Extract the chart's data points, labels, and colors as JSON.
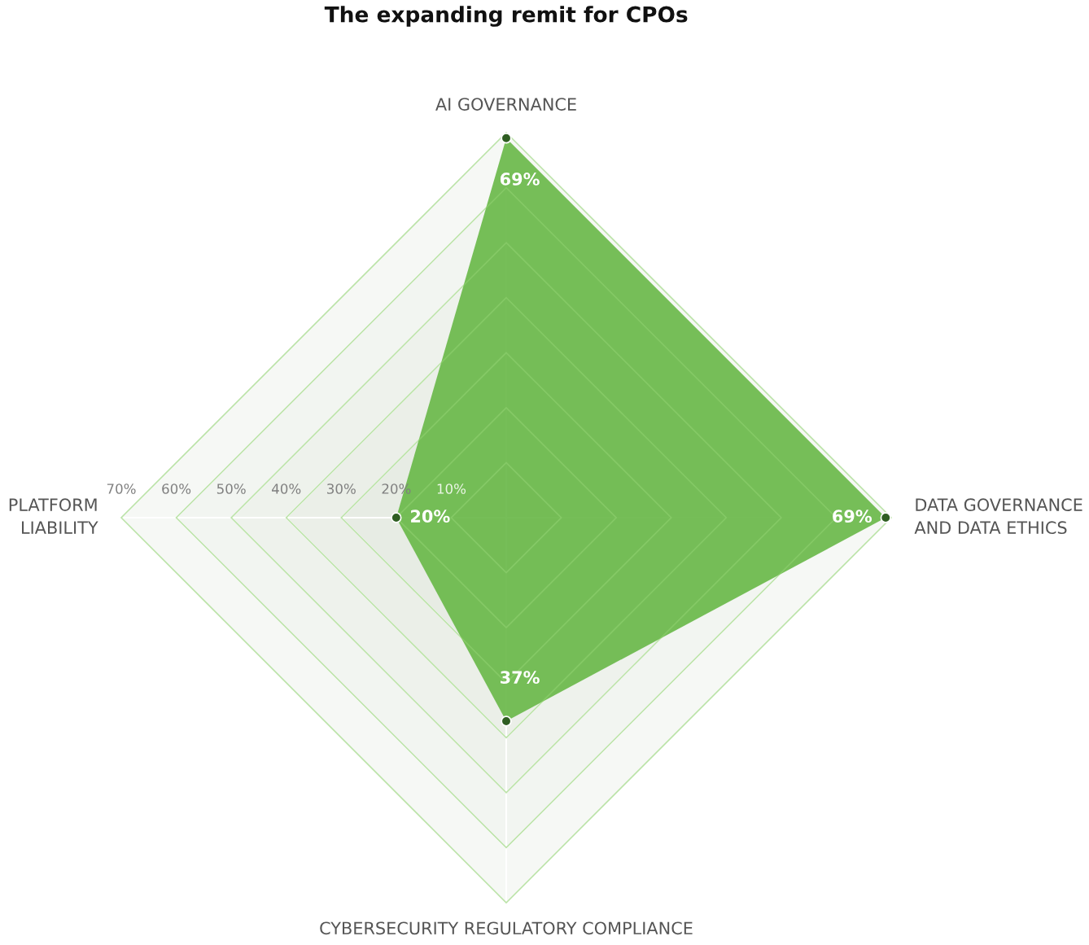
{
  "chart_data": {
    "type": "radar",
    "title": "The expanding remit for CPOs",
    "categories": [
      "AI GOVERNANCE",
      "DATA GOVERNANCE\nAND DATA ETHICS",
      "CYBERSECURITY REGULATORY COMPLIANCE",
      "PLATFORM\nLIABILITY"
    ],
    "series": [
      {
        "color": "#6ab94a",
        "values": [
          69,
          69,
          37,
          20
        ],
        "value_labels": [
          "69%",
          "69%",
          "37%",
          "20%"
        ]
      }
    ],
    "ylim": [
      0,
      70
    ],
    "yticks": [
      {
        "value": 10,
        "label": "10%"
      },
      {
        "value": 20,
        "label": "20%"
      },
      {
        "value": 30,
        "label": "30%"
      },
      {
        "value": 40,
        "label": "40%"
      },
      {
        "value": 50,
        "label": "50%"
      },
      {
        "value": 60,
        "label": "60%"
      },
      {
        "value": 70,
        "label": "70%"
      }
    ],
    "marker": "circle",
    "grid": true
  }
}
